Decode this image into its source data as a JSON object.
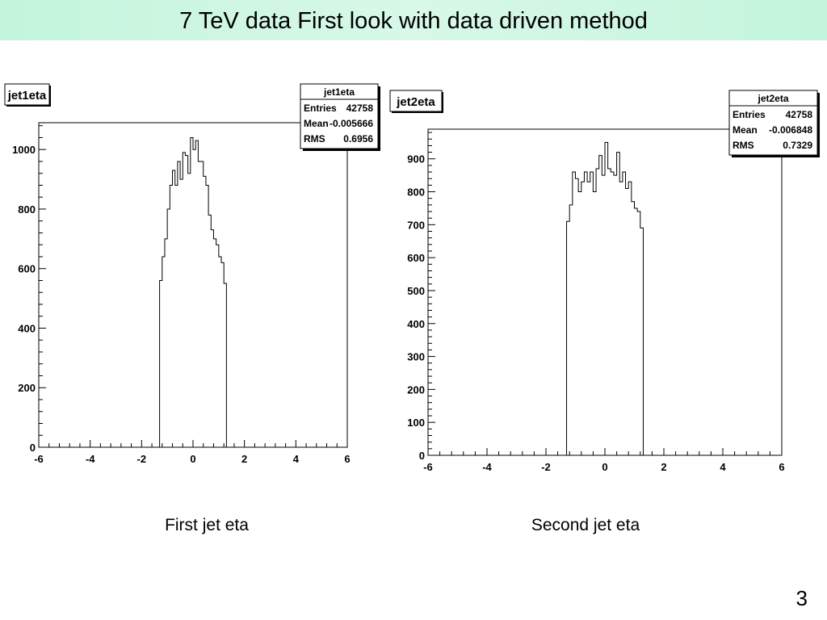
{
  "slide": {
    "title": "7 TeV data First look with data driven method",
    "page_number": "3",
    "captions": [
      "First jet eta",
      "Second jet eta"
    ]
  },
  "chart_data": [
    {
      "type": "histogram",
      "title": "jet1eta",
      "stats": {
        "name": "jet1eta",
        "rows": [
          {
            "label": "Entries",
            "value": "42758"
          },
          {
            "label": "Mean",
            "value": "-0.005666"
          },
          {
            "label": "RMS",
            "value": "0.6956"
          }
        ]
      },
      "xlim": [
        -6,
        6
      ],
      "ylim": [
        0,
        1090
      ],
      "x_ticks": [
        -6,
        -4,
        -2,
        0,
        2,
        4,
        6
      ],
      "y_ticks": [
        0,
        200,
        400,
        600,
        800,
        1000
      ],
      "bin_edges": [
        -1.3,
        -1.2,
        -1.1,
        -1.0,
        -0.9,
        -0.8,
        -0.7,
        -0.6,
        -0.5,
        -0.4,
        -0.3,
        -0.2,
        -0.1,
        0.0,
        0.1,
        0.2,
        0.3,
        0.4,
        0.5,
        0.6,
        0.7,
        0.8,
        0.9,
        1.0,
        1.1,
        1.2,
        1.3
      ],
      "values": [
        560,
        640,
        700,
        800,
        880,
        930,
        880,
        960,
        900,
        990,
        980,
        920,
        1040,
        1000,
        1030,
        960,
        960,
        910,
        880,
        780,
        730,
        700,
        680,
        640,
        620,
        550
      ]
    },
    {
      "type": "histogram",
      "title": "jet2eta",
      "stats": {
        "name": "jet2eta",
        "rows": [
          {
            "label": "Entries",
            "value": "42758"
          },
          {
            "label": "Mean",
            "value": "-0.006848"
          },
          {
            "label": "RMS",
            "value": "0.7329"
          }
        ]
      },
      "xlim": [
        -6,
        6
      ],
      "ylim": [
        0,
        990
      ],
      "x_ticks": [
        -6,
        -4,
        -2,
        0,
        2,
        4,
        6
      ],
      "y_ticks": [
        0,
        100,
        200,
        300,
        400,
        500,
        600,
        700,
        800,
        900
      ],
      "bin_edges": [
        -1.3,
        -1.2,
        -1.1,
        -1.0,
        -0.9,
        -0.8,
        -0.7,
        -0.6,
        -0.5,
        -0.4,
        -0.3,
        -0.2,
        -0.1,
        0.0,
        0.1,
        0.2,
        0.3,
        0.4,
        0.5,
        0.6,
        0.7,
        0.8,
        0.9,
        1.0,
        1.1,
        1.2,
        1.3
      ],
      "values": [
        710,
        760,
        860,
        840,
        800,
        830,
        860,
        830,
        860,
        800,
        870,
        910,
        850,
        950,
        870,
        860,
        850,
        920,
        830,
        860,
        810,
        830,
        770,
        750,
        740,
        690
      ]
    }
  ]
}
